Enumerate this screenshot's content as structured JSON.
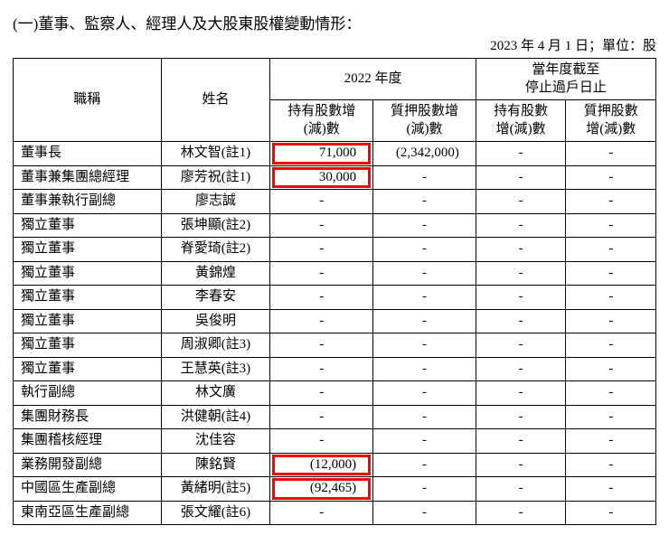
{
  "title": "(一)董事、監察人、經理人及大股東股權變動情形：",
  "date_line": "2023 年 4 月 1 日；單位：股",
  "headers": {
    "col_title": "職稱",
    "col_name": "姓名",
    "group_2022": "2022 年度",
    "group_current": "當年度截至\n停止過戶日止",
    "sub_hold": "持有股數增\n(減)數",
    "sub_pledge": "質押股數增\n(減)數",
    "sub_hold2": "持有股數\n增(減)數",
    "sub_pledge2": "質押股數\n增(減)數"
  },
  "rows": [
    {
      "title": "董事長",
      "name": "林文智(註1)",
      "hold": "71,000",
      "pledge": "(2,342,000)",
      "hold2": "-",
      "pledge2": "-",
      "hl_hold": true
    },
    {
      "title": "董事兼集團總經理",
      "name": "廖芳祝(註1)",
      "hold": "30,000",
      "pledge": "-",
      "hold2": "-",
      "pledge2": "-",
      "hl_hold": true
    },
    {
      "title": "董事兼執行副總",
      "name": "廖志誠",
      "hold": "-",
      "pledge": "-",
      "hold2": "-",
      "pledge2": "-"
    },
    {
      "title": "獨立董事",
      "name": "張坤顯(註2)",
      "hold": "-",
      "pledge": "-",
      "hold2": "-",
      "pledge2": "-"
    },
    {
      "title": "獨立董事",
      "name": "脊愛琦(註2)",
      "hold": "-",
      "pledge": "-",
      "hold2": "-",
      "pledge2": "-"
    },
    {
      "title": "獨立董事",
      "name": "黃錦煌",
      "hold": "-",
      "pledge": "-",
      "hold2": "-",
      "pledge2": "-"
    },
    {
      "title": "獨立董事",
      "name": "李春安",
      "hold": "-",
      "pledge": "-",
      "hold2": "-",
      "pledge2": "-"
    },
    {
      "title": "獨立董事",
      "name": "吳俊明",
      "hold": "-",
      "pledge": "-",
      "hold2": "-",
      "pledge2": "-"
    },
    {
      "title": "獨立董事",
      "name": "周淑卿(註3)",
      "hold": "-",
      "pledge": "-",
      "hold2": "-",
      "pledge2": "-"
    },
    {
      "title": "獨立董事",
      "name": "王慧英(註3)",
      "hold": "-",
      "pledge": "-",
      "hold2": "-",
      "pledge2": "-"
    },
    {
      "title": "執行副總",
      "name": "林文廣",
      "hold": "-",
      "pledge": "-",
      "hold2": "-",
      "pledge2": "-"
    },
    {
      "title": "集團財務長",
      "name": "洪健朝(註4)",
      "hold": "-",
      "pledge": "-",
      "hold2": "-",
      "pledge2": "-"
    },
    {
      "title": "集團稽核經理",
      "name": "沈佳容",
      "hold": "-",
      "pledge": "-",
      "hold2": "-",
      "pledge2": "-"
    },
    {
      "title": "業務開發副總",
      "name": "陳銘賢",
      "hold": "(12,000)",
      "pledge": "-",
      "hold2": "-",
      "pledge2": "-",
      "hl_hold": true
    },
    {
      "title": "中國區生產副總",
      "name": "黃緒明(註5)",
      "hold": "(92,465)",
      "pledge": "-",
      "hold2": "-",
      "pledge2": "-",
      "hl_hold": true
    },
    {
      "title": "東南亞區生產副總",
      "name": "張文耀(註6)",
      "hold": "-",
      "pledge": "-",
      "hold2": "-",
      "pledge2": "-"
    }
  ],
  "highlight_color": "#ff0000",
  "col_widths": [
    "23%",
    "17%",
    "16%",
    "16%",
    "14%",
    "14%"
  ]
}
